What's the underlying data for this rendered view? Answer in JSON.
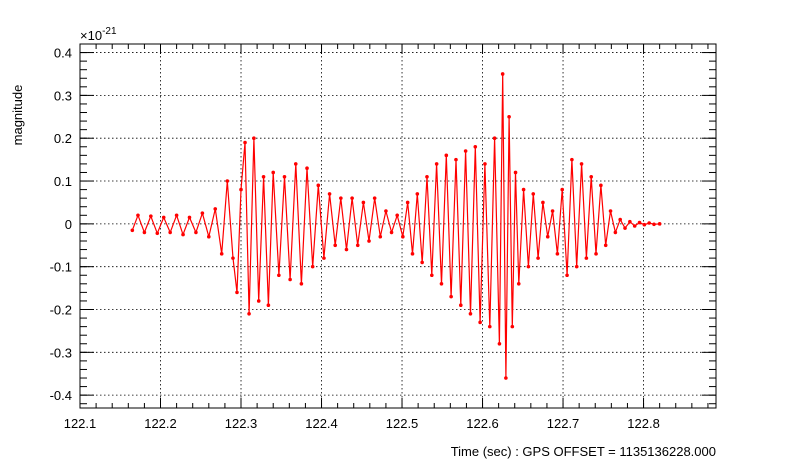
{
  "chart_data": {
    "type": "line",
    "title": "",
    "xlabel": "Time (sec) : GPS OFFSET = 1135136228.000",
    "ylabel": "magnitude",
    "y_exponent_label": "×10",
    "y_exponent_power": "-21",
    "xlim": [
      122.1,
      122.89
    ],
    "ylim": [
      -0.43,
      0.42
    ],
    "x_ticks": [
      "122.1",
      "122.2",
      "122.3",
      "122.4",
      "122.5",
      "122.6",
      "122.7",
      "122.8"
    ],
    "x_tick_values": [
      122.1,
      122.2,
      122.3,
      122.4,
      122.5,
      122.6,
      122.7,
      122.8
    ],
    "y_ticks": [
      "0.4",
      "0.3",
      "0.2",
      "0.1",
      "0",
      "-0.1",
      "-0.2",
      "-0.3",
      "-0.4"
    ],
    "y_tick_values": [
      0.4,
      0.3,
      0.2,
      0.1,
      0,
      -0.1,
      -0.2,
      -0.3,
      -0.4
    ],
    "grid": true,
    "series_color": "#ff0000",
    "series": [
      {
        "x": [
          122.165,
          122.172,
          122.18,
          122.188,
          122.196,
          122.204,
          122.212,
          122.22,
          122.228,
          122.236,
          122.244,
          122.252,
          122.26,
          122.268,
          122.276,
          122.283,
          122.29,
          122.295,
          122.3,
          122.305,
          122.31,
          122.316,
          122.322,
          122.328,
          122.334,
          122.34,
          122.347,
          122.354,
          122.361,
          122.368,
          122.375,
          122.382,
          122.389,
          122.396,
          122.403,
          122.41,
          122.417,
          122.424,
          122.431,
          122.438,
          122.445,
          122.452,
          122.459,
          122.466,
          122.473,
          122.48,
          122.487,
          122.494,
          122.501,
          122.507,
          122.513,
          122.519,
          122.525,
          122.531,
          122.537,
          122.543,
          122.549,
          122.555,
          122.561,
          122.567,
          122.573,
          122.579,
          122.585,
          122.591,
          122.597,
          122.603,
          122.609,
          122.615,
          122.621,
          122.625,
          122.629,
          122.633,
          122.637,
          122.641,
          122.645,
          122.651,
          122.657,
          122.663,
          122.669,
          122.675,
          122.681,
          122.687,
          122.693,
          122.699,
          122.705,
          122.711,
          122.717,
          122.723,
          122.729,
          122.735,
          122.741,
          122.747,
          122.753,
          122.759,
          122.765,
          122.771,
          122.777,
          122.783,
          122.789,
          122.795,
          122.801,
          122.807,
          122.813,
          122.82
        ],
        "y": [
          -0.015,
          0.02,
          -0.02,
          0.018,
          -0.022,
          0.015,
          -0.02,
          0.02,
          -0.025,
          0.015,
          -0.02,
          0.025,
          -0.03,
          0.035,
          -0.07,
          0.1,
          -0.08,
          -0.16,
          0.08,
          0.19,
          -0.21,
          0.2,
          -0.18,
          0.11,
          -0.19,
          0.12,
          -0.12,
          0.11,
          -0.13,
          0.14,
          -0.14,
          0.13,
          -0.1,
          0.09,
          -0.08,
          0.07,
          -0.05,
          0.06,
          -0.06,
          0.06,
          -0.05,
          0.05,
          -0.04,
          0.06,
          -0.03,
          0.03,
          -0.02,
          0.02,
          -0.03,
          0.05,
          -0.07,
          0.07,
          -0.09,
          0.11,
          -0.12,
          0.14,
          -0.14,
          0.16,
          -0.17,
          0.15,
          -0.19,
          0.17,
          -0.21,
          0.18,
          -0.23,
          0.14,
          -0.24,
          0.2,
          -0.28,
          0.35,
          -0.36,
          0.25,
          -0.24,
          0.12,
          -0.14,
          0.08,
          -0.1,
          0.07,
          -0.08,
          0.05,
          -0.03,
          0.03,
          -0.07,
          0.08,
          -0.12,
          0.15,
          -0.1,
          0.14,
          -0.08,
          0.11,
          -0.07,
          0.09,
          -0.05,
          0.03,
          -0.02,
          0.01,
          -0.01,
          0.005,
          -0.005,
          0.003,
          -0.002,
          0.002,
          -0.001,
          0.0
        ]
      }
    ]
  }
}
